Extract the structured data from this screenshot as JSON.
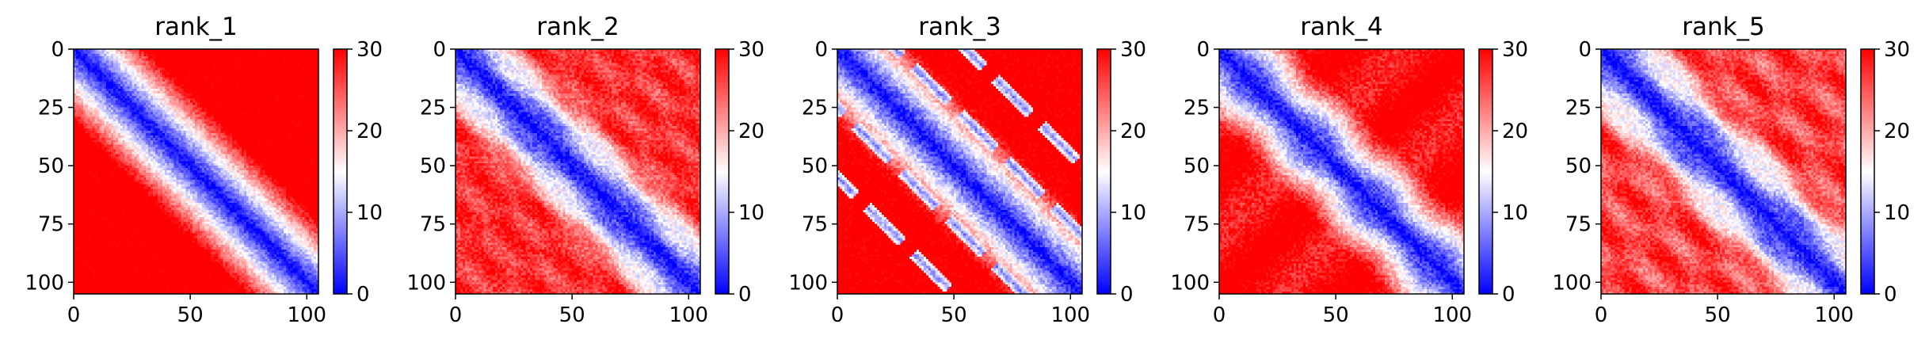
{
  "chart_data": [
    {
      "type": "heatmap",
      "title": "rank_1",
      "xlim": [
        0,
        105
      ],
      "ylim": [
        105,
        0
      ],
      "xticks": [
        "0",
        "50",
        "100"
      ],
      "yticks": [
        "0",
        "25",
        "50",
        "75",
        "100"
      ],
      "colorbar": {
        "colormap": "bwr",
        "range": [
          0,
          30
        ],
        "ticks": [
          "0",
          "10",
          "20",
          "30"
        ]
      }
    },
    {
      "type": "heatmap",
      "title": "rank_2",
      "xlim": [
        0,
        105
      ],
      "ylim": [
        105,
        0
      ],
      "xticks": [
        "0",
        "50",
        "100"
      ],
      "yticks": [
        "0",
        "25",
        "50",
        "75",
        "100"
      ],
      "colorbar": {
        "colormap": "bwr",
        "range": [
          0,
          30
        ],
        "ticks": [
          "0",
          "10",
          "20",
          "30"
        ]
      }
    },
    {
      "type": "heatmap",
      "title": "rank_3",
      "xlim": [
        0,
        105
      ],
      "ylim": [
        105,
        0
      ],
      "xticks": [
        "0",
        "50",
        "100"
      ],
      "yticks": [
        "0",
        "25",
        "50",
        "75",
        "100"
      ],
      "colorbar": {
        "colormap": "bwr",
        "range": [
          0,
          30
        ],
        "ticks": [
          "0",
          "10",
          "20",
          "30"
        ]
      }
    },
    {
      "type": "heatmap",
      "title": "rank_4",
      "xlim": [
        0,
        105
      ],
      "ylim": [
        105,
        0
      ],
      "xticks": [
        "0",
        "50",
        "100"
      ],
      "yticks": [
        "0",
        "25",
        "50",
        "75",
        "100"
      ],
      "colorbar": {
        "colormap": "bwr",
        "range": [
          0,
          30
        ],
        "ticks": [
          "0",
          "10",
          "20",
          "30"
        ]
      }
    },
    {
      "type": "heatmap",
      "title": "rank_5",
      "xlim": [
        0,
        105
      ],
      "ylim": [
        105,
        0
      ],
      "xticks": [
        "0",
        "50",
        "100"
      ],
      "yticks": [
        "0",
        "25",
        "50",
        "75",
        "100"
      ],
      "colorbar": {
        "colormap": "bwr",
        "range": [
          0,
          30
        ],
        "ticks": [
          "0",
          "10",
          "20",
          "30"
        ]
      }
    }
  ]
}
